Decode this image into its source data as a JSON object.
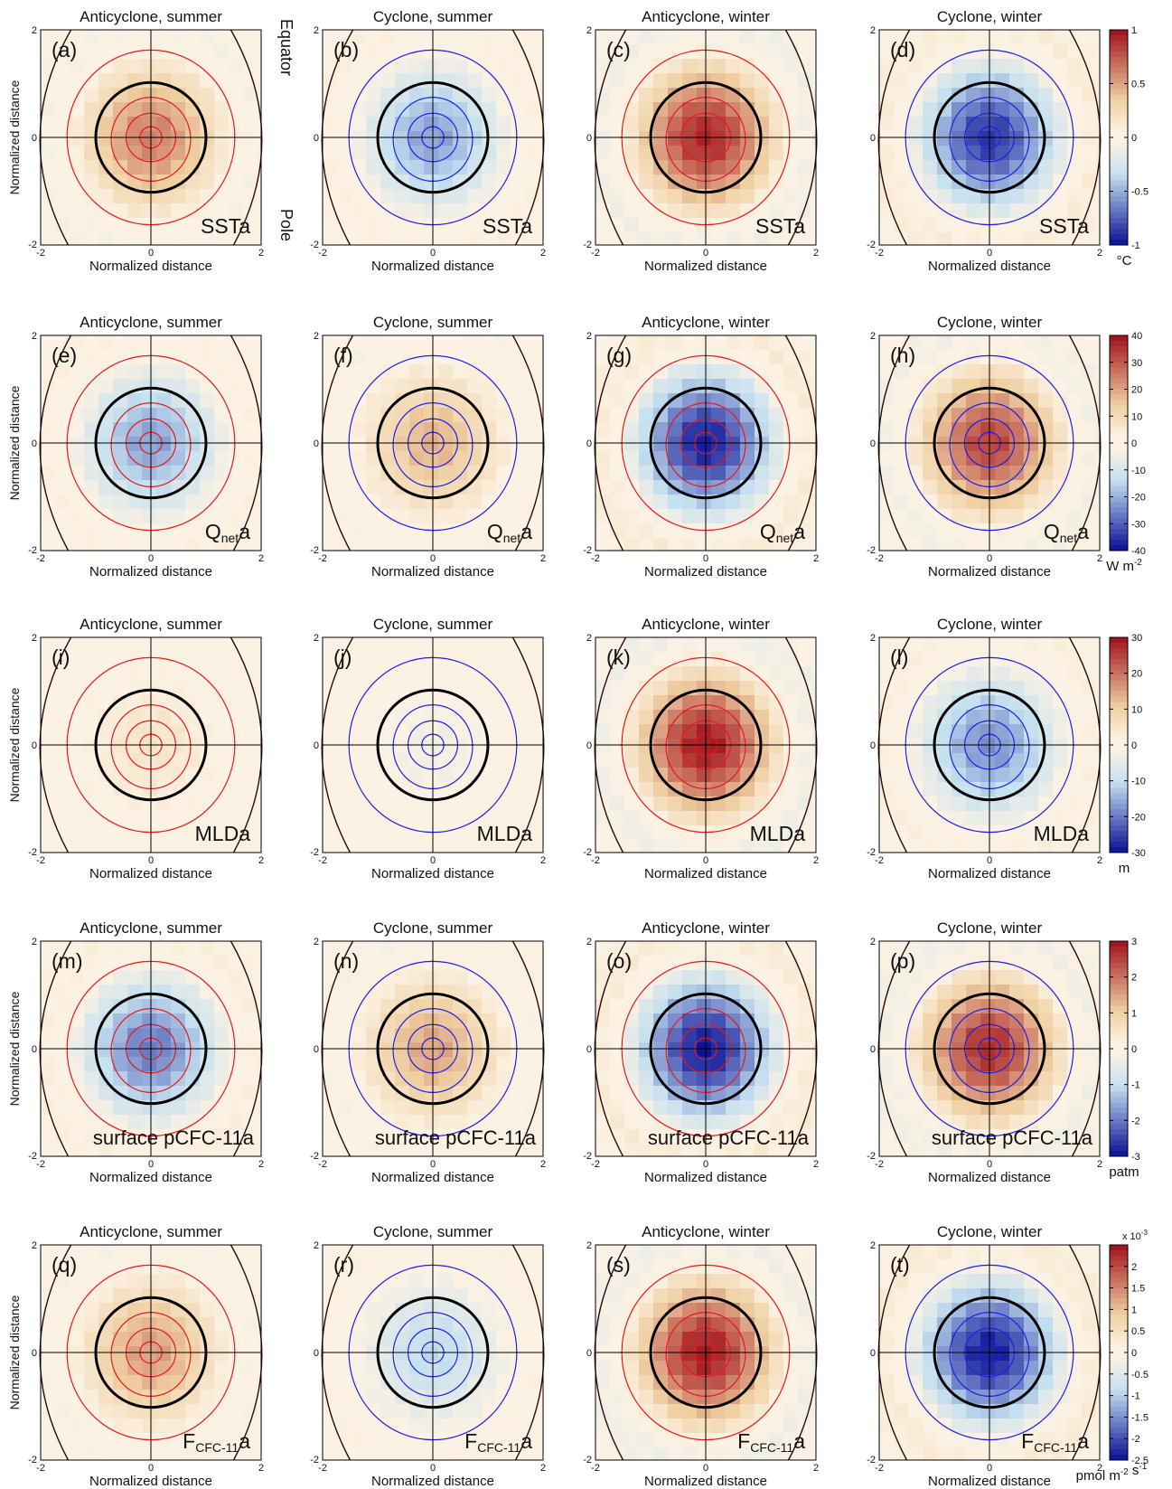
{
  "chart_data": {
    "type": "heatmap",
    "panel_titles": [
      "Anticyclone, summer",
      "Cyclone, summer",
      "Anticyclone, winter",
      "Cyclone, winter"
    ],
    "xlabel": "Normalized distance",
    "ylabel": "Normalized distance",
    "xlim": [
      -2,
      2
    ],
    "ylim": [
      -2,
      2
    ],
    "xticks": [
      "-2",
      "0",
      "2"
    ],
    "yticks": [
      "-2",
      "0",
      "2"
    ],
    "annotations": {
      "top": "Equator",
      "bottom": "Pole"
    },
    "colormap": {
      "negative": "#0a0f96",
      "neutral": "#fcf2e3",
      "neg_light": "#c4e0f0",
      "pos_light": "#f0d0a3",
      "positive": "#a10f1a",
      "anticyclone_contour": "#e41a1c",
      "cyclone_contour": "#1f1fe6",
      "eddy_edge": "#000000"
    },
    "rows": [
      {
        "variable": "SSTa",
        "unit": "°C",
        "clim": [
          -1,
          1
        ],
        "colorbar_ticks": [
          "1",
          "0.5",
          "0",
          "-0.5",
          "-1"
        ],
        "colorbar_tick_values": [
          1,
          0.5,
          0,
          -0.5,
          -1
        ],
        "exponent": "",
        "panels": [
          {
            "label": "(a)",
            "center_value": 0.62,
            "sign": 1
          },
          {
            "label": "(b)",
            "center_value": -0.55,
            "sign": -1
          },
          {
            "label": "(c)",
            "center_value": 0.92,
            "sign": 1
          },
          {
            "label": "(d)",
            "center_value": -0.88,
            "sign": -1
          }
        ]
      },
      {
        "variable": "Qneta",
        "unit": "W m-2",
        "clim": [
          -40,
          40
        ],
        "colorbar_ticks": [
          "40",
          "30",
          "20",
          "10",
          "0",
          "-10",
          "-20",
          "-30",
          "-40"
        ],
        "colorbar_tick_values": [
          40,
          30,
          20,
          10,
          0,
          -10,
          -20,
          -30,
          -40
        ],
        "exponent": "",
        "panels": [
          {
            "label": "(e)",
            "center_value": -22,
            "sign": -1
          },
          {
            "label": "(f)",
            "center_value": 18,
            "sign": 1
          },
          {
            "label": "(g)",
            "center_value": -38,
            "sign": -1
          },
          {
            "label": "(h)",
            "center_value": 33,
            "sign": 1
          }
        ]
      },
      {
        "variable": "MLDa",
        "unit": "m",
        "clim": [
          -30,
          30
        ],
        "colorbar_ticks": [
          "30",
          "20",
          "10",
          "0",
          "-10",
          "-20",
          "-30"
        ],
        "colorbar_tick_values": [
          30,
          20,
          10,
          0,
          -10,
          -20,
          -30
        ],
        "exponent": "",
        "panels": [
          {
            "label": "(i)",
            "center_value": 5,
            "sign": 1
          },
          {
            "label": "(j)",
            "center_value": -3,
            "sign": -1
          },
          {
            "label": "(k)",
            "center_value": 29,
            "sign": 1
          },
          {
            "label": "(l)",
            "center_value": -18,
            "sign": -1
          }
        ]
      },
      {
        "variable": "surface pCFC-11a",
        "unit": "patm",
        "clim": [
          -3,
          3
        ],
        "colorbar_ticks": [
          "3",
          "2",
          "1",
          "0",
          "-1",
          "-2",
          "-3"
        ],
        "colorbar_tick_values": [
          3,
          2,
          1,
          0,
          -1,
          -2,
          -3
        ],
        "exponent": "",
        "panels": [
          {
            "label": "(m)",
            "center_value": -2.0,
            "sign": -1
          },
          {
            "label": "(n)",
            "center_value": 1.5,
            "sign": 1
          },
          {
            "label": "(o)",
            "center_value": -2.9,
            "sign": -1
          },
          {
            "label": "(p)",
            "center_value": 2.7,
            "sign": 1
          }
        ]
      },
      {
        "variable": "FCFC-11a",
        "unit": "pmol m-2 s-1",
        "clim": [
          -0.0025,
          0.0025
        ],
        "colorbar_ticks": [
          "2",
          "1.5",
          "1",
          "0.5",
          "0",
          "-0.5",
          "-1",
          "-1.5",
          "-2",
          "-2.5"
        ],
        "colorbar_tick_values": [
          0.002,
          0.0015,
          0.001,
          0.0005,
          0,
          -0.0005,
          -0.001,
          -0.0015,
          -0.002,
          -0.0025
        ],
        "exponent": "x 10-3",
        "panels": [
          {
            "label": "(q)",
            "center_value": 0.0013,
            "sign": 1
          },
          {
            "label": "(r)",
            "center_value": -0.0009,
            "sign": -1
          },
          {
            "label": "(s)",
            "center_value": 0.0024,
            "sign": 1
          },
          {
            "label": "(t)",
            "center_value": -0.0024,
            "sign": -1
          }
        ]
      }
    ]
  }
}
